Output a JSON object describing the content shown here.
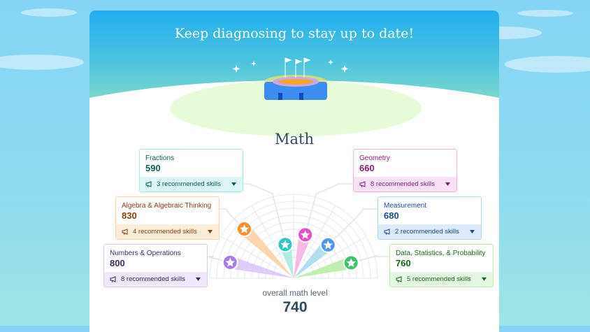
{
  "hero": {
    "title": "Keep diagnosing to stay up to date!"
  },
  "subject": "Math",
  "overall": {
    "label": "overall math level",
    "value": "740"
  },
  "domains": [
    {
      "name": "Numbers & Operations",
      "score": 800,
      "skills": "8 recommended skills",
      "color": "#a97de8",
      "tint": "#f1e8fc",
      "text": "#3b2a6b",
      "light": "#dcc7f7"
    },
    {
      "name": "Algebra & Algebraic Thinking",
      "score": 830,
      "skills": "4 recommended skills",
      "color": "#f7902f",
      "tint": "#fdecd9",
      "text": "#8a3d10",
      "light": "#fcd2a6"
    },
    {
      "name": "Fractions",
      "score": 590,
      "skills": "3 recommended skills",
      "color": "#2ec9c0",
      "tint": "#dcf6f7",
      "text": "#0e5e5b",
      "light": "#a9e8df"
    },
    {
      "name": "Geometry",
      "score": 660,
      "skills": "8 recommended skills",
      "color": "#e251c8",
      "tint": "#fbe1f5",
      "text": "#8a1a7a",
      "light": "#f5b3e2"
    },
    {
      "name": "Measurement",
      "score": 680,
      "skills": "2 recommended skills",
      "color": "#4f98ee",
      "tint": "#dceafc",
      "text": "#1b4a92",
      "light": "#a9daf0"
    },
    {
      "name": "Data, Statistics, & Probability",
      "score": 760,
      "skills": "5 recommended skills",
      "color": "#3ec46a",
      "tint": "#e4f7e4",
      "text": "#1a6a1a",
      "light": "#bcecaa"
    }
  ],
  "icons": {
    "skills": "megaphone-icon",
    "dropdown": "caret-down-icon",
    "marker": "star-icon"
  }
}
